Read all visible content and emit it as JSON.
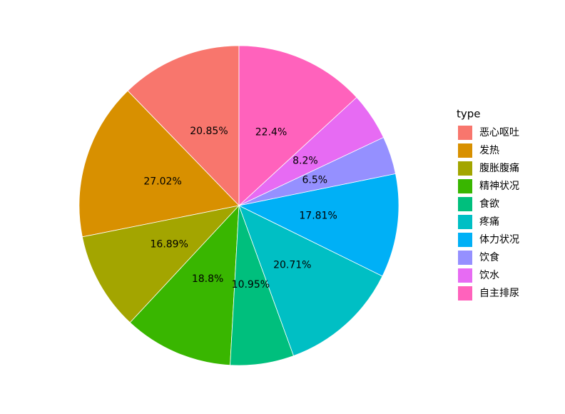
{
  "chart_data": {
    "type": "pie",
    "legend_title": "type",
    "categories": [
      "恶心呕吐",
      "发热",
      "腹胀腹痛",
      "精神状况",
      "食欲",
      "疼痛",
      "体力状况",
      "饮食",
      "饮水",
      "自主排尿"
    ],
    "values": [
      20.85,
      27.02,
      16.89,
      18.8,
      10.95,
      20.71,
      17.81,
      6.5,
      8.2,
      22.4
    ],
    "value_labels": [
      "20.85%",
      "27.02%",
      "16.89%",
      "18.8%",
      "10.95%",
      "20.71%",
      "17.81%",
      "6.5%",
      "8.2%",
      "22.4%"
    ],
    "colors": [
      "#F8766D",
      "#D89000",
      "#A3A500",
      "#39B600",
      "#00BF7D",
      "#00BFC4",
      "#00B0F6",
      "#9590FF",
      "#E76BF3",
      "#FF62BC"
    ]
  }
}
